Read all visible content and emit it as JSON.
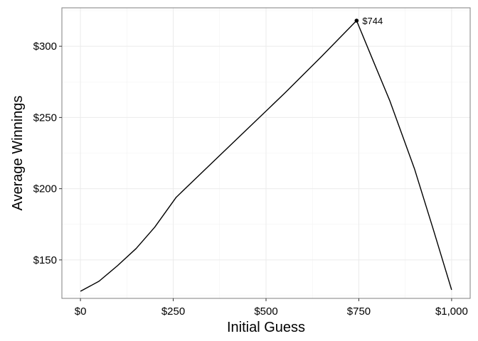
{
  "chart_data": {
    "type": "line",
    "title": "",
    "xlabel": "Initial Guess",
    "ylabel": "Average Winnings",
    "xlim": [
      -50,
      1050
    ],
    "ylim": [
      123,
      327
    ],
    "x_ticks": [
      0,
      250,
      500,
      750,
      1000
    ],
    "x_tick_labels": [
      "$0",
      "$250",
      "$500",
      "$750",
      "$1,000"
    ],
    "y_ticks": [
      150,
      200,
      250,
      300
    ],
    "y_tick_labels": [
      "$150",
      "$200",
      "$250",
      "$300"
    ],
    "grid": true,
    "series": [
      {
        "x": [
          0,
          50,
          100,
          150,
          200,
          258,
          350,
          450,
          550,
          650,
          744,
          790,
          833,
          900,
          950,
          1000
        ],
        "y": [
          128,
          135,
          146,
          158,
          173,
          194,
          217,
          242,
          267,
          293,
          318,
          289,
          262,
          214,
          172,
          129
        ],
        "color": "#000000"
      }
    ],
    "annotations": [
      {
        "x": 744,
        "y": 318,
        "text": "$744"
      }
    ]
  }
}
